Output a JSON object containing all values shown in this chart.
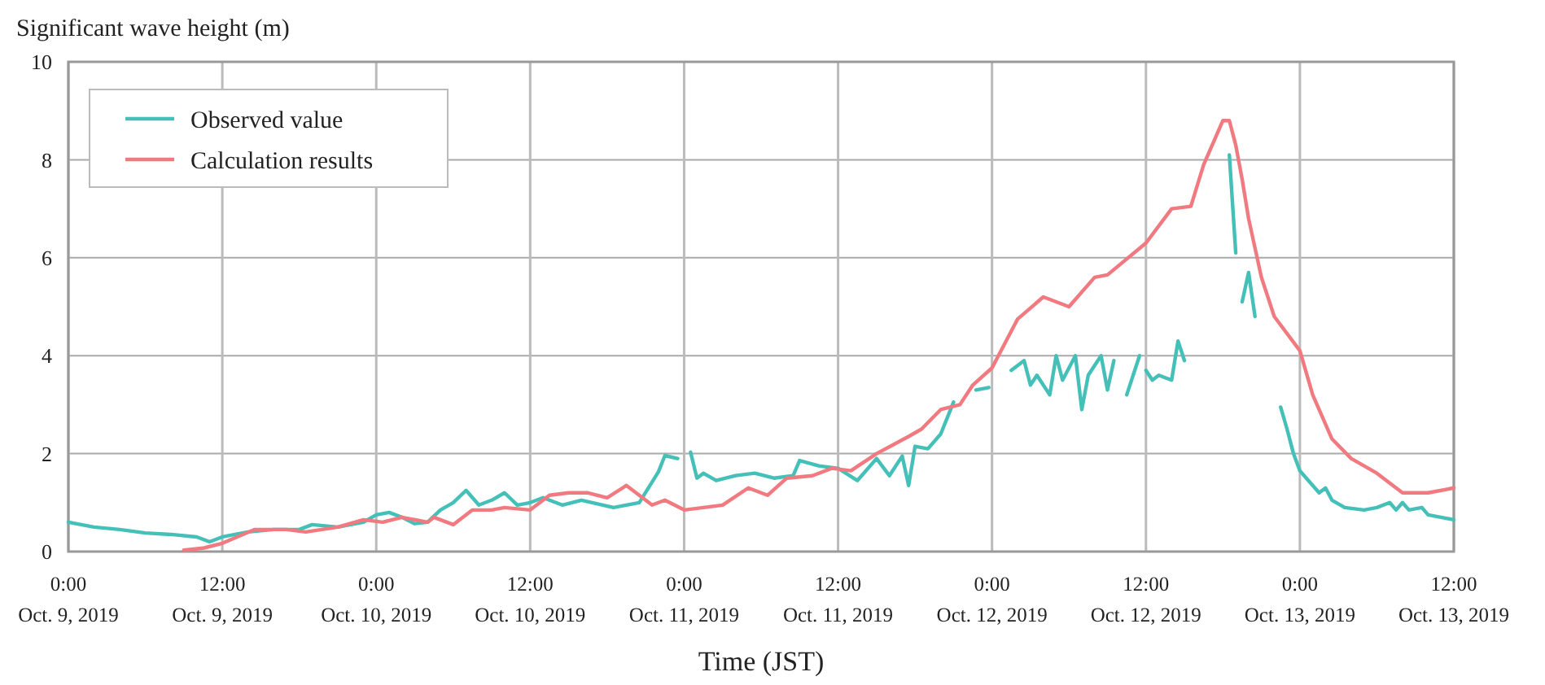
{
  "chart_data": {
    "type": "line",
    "ylabel": "Significant wave height (m)",
    "xlabel": "Time (JST)",
    "xlim": [
      "2019-10-09T00:00",
      "2019-10-13T12:00"
    ],
    "xticks": [
      {
        "value": "2019-10-09T00:00",
        "label": "0:00\nOct. 9, 2019"
      },
      {
        "value": "2019-10-09T12:00",
        "label": "12:00\nOct. 9, 2019"
      },
      {
        "value": "2019-10-10T00:00",
        "label": "0:00\nOct. 10, 2019"
      },
      {
        "value": "2019-10-10T12:00",
        "label": "12:00\nOct. 10, 2019"
      },
      {
        "value": "2019-10-11T00:00",
        "label": "0:00\nOct. 11, 2019"
      },
      {
        "value": "2019-10-11T12:00",
        "label": "12:00\nOct. 11, 2019"
      },
      {
        "value": "2019-10-12T00:00",
        "label": "0:00\nOct. 12, 2019"
      },
      {
        "value": "2019-10-12T12:00",
        "label": "12:00\nOct. 12, 2019"
      },
      {
        "value": "2019-10-13T00:00",
        "label": "0:00\nOct. 13, 2019"
      },
      {
        "value": "2019-10-13T12:00",
        "label": "12:00\nOct. 13, 2019"
      }
    ],
    "ylim": [
      0,
      10
    ],
    "yticks": [
      0,
      2,
      4,
      6,
      8,
      10
    ],
    "grid": true,
    "legend": "top left",
    "line_style": "solid",
    "series": [
      {
        "name": "Observed value",
        "color": "#45c0b8",
        "x": [
          "2019-10-09T00:00",
          "2019-10-09T02:00",
          "2019-10-09T04:00",
          "2019-10-09T06:00",
          "2019-10-09T08:00",
          "2019-10-09T10:00",
          "2019-10-09T11:00",
          "2019-10-09T12:00",
          "2019-10-09T14:00",
          "2019-10-09T16:00",
          "2019-10-09T18:00",
          "2019-10-09T19:00",
          "2019-10-09T21:00",
          "2019-10-09T23:00",
          "2019-10-10T00:00",
          "2019-10-10T01:00",
          "2019-10-10T02:00",
          "2019-10-10T03:00",
          "2019-10-10T04:00",
          "2019-10-10T05:00",
          "2019-10-10T06:00",
          "2019-10-10T07:00",
          "2019-10-10T08:00",
          "2019-10-10T09:00",
          "2019-10-10T10:00",
          "2019-10-10T11:00",
          "2019-10-10T12:00",
          "2019-10-10T13:00",
          "2019-10-10T14:30",
          "2019-10-10T16:00",
          "2019-10-10T18:30",
          "2019-10-10T20:30",
          "2019-10-10T22:00",
          "2019-10-10T22:30",
          "2019-10-10T23:30",
          "2019-10-11T00:00",
          "2019-10-11T00:30",
          "2019-10-11T01:00",
          "2019-10-11T01:30",
          "2019-10-11T02:30",
          "2019-10-11T04:00",
          "2019-10-11T05:30",
          "2019-10-11T07:00",
          "2019-10-11T08:30",
          "2019-10-11T09:00",
          "2019-10-11T10:30",
          "2019-10-11T12:00",
          "2019-10-11T13:30",
          "2019-10-11T14:00",
          "2019-10-11T15:00",
          "2019-10-11T16:00",
          "2019-10-11T17:00",
          "2019-10-11T17:30",
          "2019-10-11T18:00",
          "2019-10-11T19:00",
          "2019-10-11T20:00",
          "2019-10-11T21:00",
          "2019-10-11T21:30",
          "2019-10-11T22:45",
          "2019-10-11T23:45",
          "2019-10-12T00:00",
          "2019-10-12T01:30",
          "2019-10-12T02:30",
          "2019-10-12T03:00",
          "2019-10-12T03:30",
          "2019-10-12T04:30",
          "2019-10-12T05:00",
          "2019-10-12T05:30",
          "2019-10-12T06:30",
          "2019-10-12T07:00",
          "2019-10-12T07:30",
          "2019-10-12T08:30",
          "2019-10-12T09:00",
          "2019-10-12T09:30",
          "2019-10-12T10:00",
          "2019-10-12T10:30",
          "2019-10-12T11:30",
          "2019-10-12T11:45",
          "2019-10-12T12:00",
          "2019-10-12T12:30",
          "2019-10-12T13:00",
          "2019-10-12T14:00",
          "2019-10-12T14:30",
          "2019-10-12T15:00",
          "2019-10-12T16:00",
          "2019-10-12T18:30",
          "2019-10-12T19:00",
          "2019-10-12T19:15",
          "2019-10-12T19:30",
          "2019-10-12T20:00",
          "2019-10-12T20:30",
          "2019-10-12T21:00",
          "2019-10-12T22:30",
          "2019-10-12T23:00",
          "2019-10-12T23:30",
          "2019-10-13T00:00",
          "2019-10-13T00:30",
          "2019-10-13T01:30",
          "2019-10-13T02:00",
          "2019-10-13T02:30",
          "2019-10-13T03:30",
          "2019-10-13T05:00",
          "2019-10-13T06:00",
          "2019-10-13T07:00",
          "2019-10-13T07:30",
          "2019-10-13T08:00",
          "2019-10-13T08:30",
          "2019-10-13T09:30",
          "2019-10-13T10:00",
          "2019-10-13T11:00",
          "2019-10-13T12:00"
        ],
        "values": [
          0.6,
          0.5,
          0.45,
          0.38,
          0.35,
          0.3,
          0.2,
          0.3,
          0.4,
          0.45,
          0.45,
          0.55,
          0.5,
          0.6,
          0.75,
          0.8,
          0.7,
          0.57,
          0.6,
          0.85,
          1.0,
          1.25,
          0.95,
          1.05,
          1.2,
          0.95,
          1.0,
          1.1,
          0.95,
          1.05,
          0.9,
          1.0,
          1.63,
          1.96,
          1.9,
          null,
          2.03,
          1.5,
          1.6,
          1.45,
          1.55,
          1.6,
          1.5,
          1.55,
          1.86,
          1.75,
          1.7,
          1.45,
          1.6,
          1.9,
          1.55,
          1.95,
          1.35,
          2.15,
          2.1,
          2.4,
          3.05,
          null,
          3.3,
          3.35,
          null,
          3.7,
          3.9,
          3.4,
          3.6,
          3.2,
          4.0,
          3.5,
          4.0,
          2.9,
          3.6,
          4.0,
          3.3,
          3.9,
          null,
          3.2,
          4.0,
          null,
          3.7,
          3.5,
          3.6,
          3.5,
          4.3,
          3.9,
          null,
          8.1,
          6.1,
          null,
          5.1,
          5.7,
          4.8,
          null,
          2.95,
          2.5,
          2.0,
          1.65,
          1.5,
          1.2,
          1.3,
          1.05,
          0.9,
          0.85,
          0.9,
          1.0,
          0.85,
          1.0,
          0.85,
          0.9,
          0.75,
          0.7,
          0.65
        ]
      },
      {
        "name": "Calculation results",
        "color": "#f07a80",
        "x": [
          "2019-10-09T09:00",
          "2019-10-09T10:30",
          "2019-10-09T12:00",
          "2019-10-09T14:30",
          "2019-10-09T17:00",
          "2019-10-09T18:30",
          "2019-10-09T21:00",
          "2019-10-09T23:00",
          "2019-10-10T00:30",
          "2019-10-10T02:00",
          "2019-10-10T04:00",
          "2019-10-10T04:30",
          "2019-10-10T06:00",
          "2019-10-10T07:30",
          "2019-10-10T09:00",
          "2019-10-10T10:00",
          "2019-10-10T12:00",
          "2019-10-10T13:30",
          "2019-10-10T15:00",
          "2019-10-10T16:30",
          "2019-10-10T18:00",
          "2019-10-10T19:30",
          "2019-10-10T21:30",
          "2019-10-10T22:30",
          "2019-10-11T00:00",
          "2019-10-11T03:00",
          "2019-10-11T05:00",
          "2019-10-11T06:30",
          "2019-10-11T08:00",
          "2019-10-11T10:00",
          "2019-10-11T11:30",
          "2019-10-11T13:00",
          "2019-10-11T15:00",
          "2019-10-11T17:30",
          "2019-10-11T18:30",
          "2019-10-11T20:00",
          "2019-10-11T21:30",
          "2019-10-11T22:30",
          "2019-10-12T00:00",
          "2019-10-12T02:00",
          "2019-10-12T04:00",
          "2019-10-12T06:00",
          "2019-10-12T08:00",
          "2019-10-12T09:00",
          "2019-10-12T12:00",
          "2019-10-12T14:00",
          "2019-10-12T15:30",
          "2019-10-12T16:30",
          "2019-10-12T18:00",
          "2019-10-12T18:30",
          "2019-10-12T19:00",
          "2019-10-12T19:30",
          "2019-10-12T20:00",
          "2019-10-12T21:00",
          "2019-10-12T22:00",
          "2019-10-13T00:00",
          "2019-10-13T01:00",
          "2019-10-13T02:30",
          "2019-10-13T04:00",
          "2019-10-13T06:00",
          "2019-10-13T08:00",
          "2019-10-13T10:00",
          "2019-10-13T12:00"
        ],
        "values": [
          0.03,
          0.07,
          0.17,
          0.45,
          0.45,
          0.4,
          0.5,
          0.65,
          0.6,
          0.7,
          0.6,
          0.7,
          0.55,
          0.85,
          0.85,
          0.9,
          0.85,
          1.15,
          1.2,
          1.2,
          1.1,
          1.35,
          0.95,
          1.05,
          0.85,
          0.95,
          1.3,
          1.15,
          1.5,
          1.55,
          1.7,
          1.65,
          2.0,
          2.35,
          2.5,
          2.9,
          3.0,
          3.4,
          3.75,
          4.75,
          5.2,
          5.0,
          5.6,
          5.65,
          6.3,
          7.0,
          7.05,
          7.9,
          8.8,
          8.8,
          8.3,
          7.6,
          6.8,
          5.6,
          4.8,
          4.1,
          3.2,
          2.3,
          1.9,
          1.6,
          1.2,
          1.2,
          1.3
        ]
      }
    ]
  }
}
